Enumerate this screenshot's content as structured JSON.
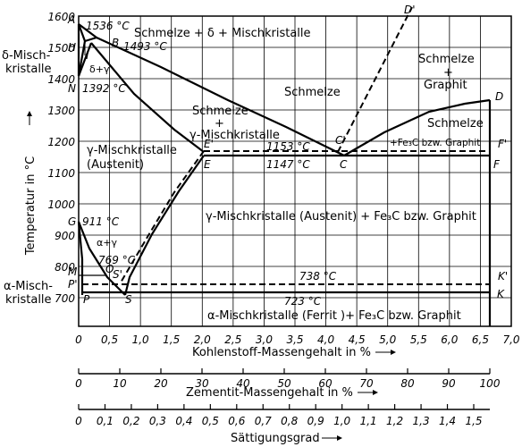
{
  "diagram": {
    "y_axis_label": "Temperatur in °C",
    "x_axis_label": "Kohlenstoff-Massengehalt in %",
    "scale2_label": "Zementit-Massengehalt in %",
    "scale3_label": "Sättigungsgrad",
    "y_ticks": [
      "1600",
      "1500",
      "1400",
      "1300",
      "1200",
      "1100",
      "1000",
      "900",
      "800",
      "700"
    ],
    "x_ticks": [
      "0",
      "0,5",
      "1,0",
      "1,5",
      "2,0",
      "2,5",
      "3,0",
      "3,5",
      "4,0",
      "4,5",
      "5,0",
      "5,5",
      "6,0",
      "6,5",
      "7,0"
    ],
    "cementite_ticks": [
      "0",
      "10",
      "20",
      "30",
      "40",
      "50",
      "60",
      "70",
      "80",
      "90",
      "100"
    ],
    "saturation_ticks": [
      "0",
      "0,1",
      "0,2",
      "0,3",
      "0,4",
      "0,5",
      "0,6",
      "0,7",
      "0,8",
      "0,9",
      "1,0",
      "1,1",
      "1,2",
      "1,3",
      "1,4",
      "1,5"
    ],
    "regions": {
      "melt_delta": "Schmelze + δ + Mischkristalle",
      "delta_left_1": "δ-Misch-",
      "delta_left_2": "kristalle",
      "delta_gamma": "δ+γ",
      "melt": "Schmelze",
      "melt_graphite_1": "Schmelze",
      "melt_graphite_2": "+",
      "melt_graphite_3": "Graphit",
      "melt_gamma_1": "Schmelze",
      "melt_gamma_2": "+",
      "melt_gamma_3": "γ-Mischkristalle",
      "austenite_1": "γ-Mischkristalle",
      "austenite_2": "(Austenit)",
      "melt_fe3c_1": "Schmelze",
      "melt_fe3c_2": "+Fe₃C bzw. Graphit",
      "austenite_fe3c": "γ-Mischkristalle (Austenit) + Fe₃C bzw. Graphit",
      "alpha_gamma": "α+γ",
      "alpha_left_1": "α-Misch-",
      "alpha_left_2": "kristalle",
      "ferrite_fe3c": "α-Mischkristalle (Ferrit )+ Fe₃C bzw. Graphit"
    },
    "temperatures": {
      "A": "1536 °C",
      "B": "1493 °C",
      "N": "1392 °C",
      "E_dashed": "1153 °C",
      "E": "1147 °C",
      "G": "911 °C",
      "O": "769 °C",
      "S_dashed": "738 °C",
      "S": "723 °C"
    },
    "points": {
      "A": "A",
      "B": "B",
      "H": "H",
      "I": "I",
      "N": "N",
      "D_prime": "D'",
      "D": "D",
      "C_prime": "C'",
      "C": "C",
      "E_prime": "E'",
      "E": "E",
      "F_prime": "F'",
      "F": "F",
      "G": "G",
      "M": "M",
      "O": "O",
      "P_prime": "P'",
      "P": "P",
      "S_prime": "S'",
      "S": "S",
      "K_prime": "K'",
      "K": "K"
    }
  }
}
